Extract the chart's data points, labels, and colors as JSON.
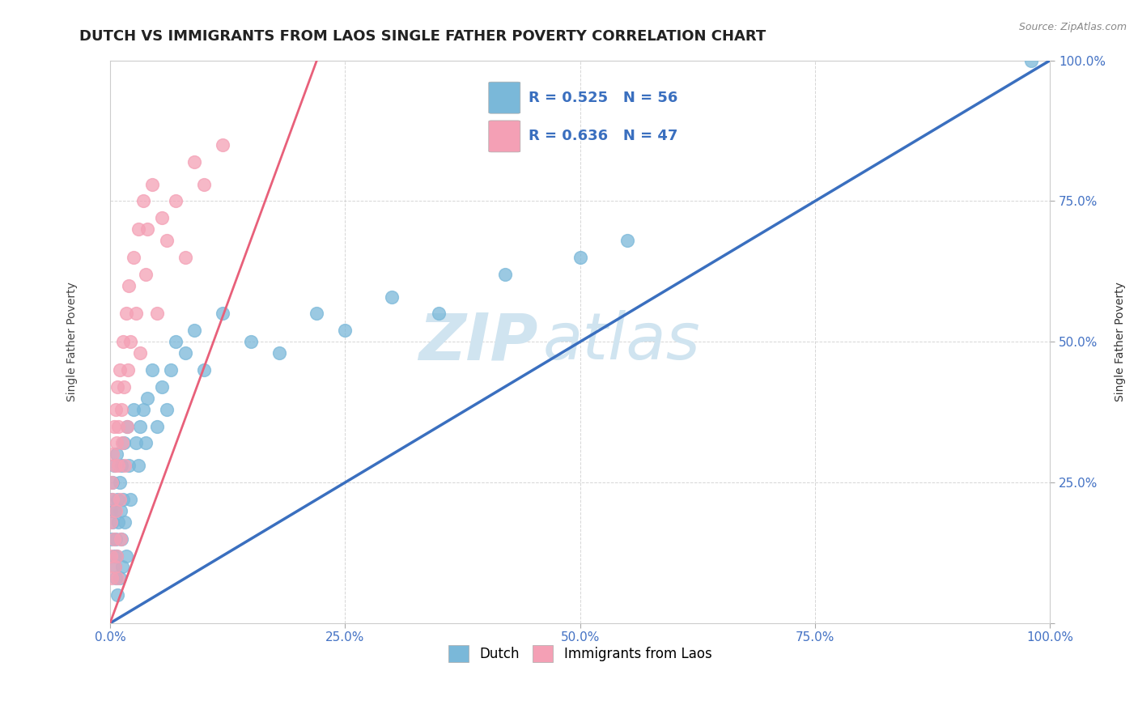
{
  "title": "DUTCH VS IMMIGRANTS FROM LAOS SINGLE FATHER POVERTY CORRELATION CHART",
  "source": "Source: ZipAtlas.com",
  "ylabel": "Single Father Poverty",
  "xlim": [
    0,
    1
  ],
  "ylim": [
    0,
    1
  ],
  "xticks": [
    0,
    0.25,
    0.5,
    0.75,
    1.0
  ],
  "yticks": [
    0.0,
    0.25,
    0.5,
    0.75,
    1.0
  ],
  "xticklabels": [
    "0.0%",
    "25.0%",
    "50.0%",
    "75.0%",
    "100.0%"
  ],
  "yticklabels": [
    "",
    "25.0%",
    "50.0%",
    "75.0%",
    "100.0%"
  ],
  "dutch_color": "#7ab8d9",
  "laos_color": "#f4a0b5",
  "dutch_line_color": "#3a6fbf",
  "laos_line_color": "#e8607a",
  "legend_R_dutch": "R = 0.525",
  "legend_N_dutch": "N = 56",
  "legend_R_laos": "R = 0.636",
  "legend_N_laos": "N = 47",
  "watermark_zip": "ZIP",
  "watermark_atlas": "atlas",
  "watermark_color": "#d0e4f0",
  "dutch_x": [
    0.001,
    0.002,
    0.002,
    0.003,
    0.003,
    0.004,
    0.004,
    0.005,
    0.005,
    0.006,
    0.006,
    0.007,
    0.007,
    0.008,
    0.008,
    0.009,
    0.01,
    0.01,
    0.011,
    0.012,
    0.012,
    0.013,
    0.014,
    0.015,
    0.016,
    0.017,
    0.018,
    0.02,
    0.022,
    0.025,
    0.028,
    0.03,
    0.032,
    0.035,
    0.038,
    0.04,
    0.045,
    0.05,
    0.055,
    0.06,
    0.065,
    0.07,
    0.08,
    0.09,
    0.1,
    0.12,
    0.15,
    0.18,
    0.22,
    0.25,
    0.3,
    0.35,
    0.42,
    0.5,
    0.55,
    0.98
  ],
  "dutch_y": [
    0.2,
    0.15,
    0.22,
    0.18,
    0.25,
    0.12,
    0.28,
    0.1,
    0.2,
    0.08,
    0.15,
    0.3,
    0.12,
    0.22,
    0.05,
    0.18,
    0.25,
    0.08,
    0.2,
    0.15,
    0.28,
    0.1,
    0.22,
    0.32,
    0.18,
    0.12,
    0.35,
    0.28,
    0.22,
    0.38,
    0.32,
    0.28,
    0.35,
    0.38,
    0.32,
    0.4,
    0.45,
    0.35,
    0.42,
    0.38,
    0.45,
    0.5,
    0.48,
    0.52,
    0.45,
    0.55,
    0.5,
    0.48,
    0.55,
    0.52,
    0.58,
    0.55,
    0.62,
    0.65,
    0.68,
    1.0
  ],
  "laos_x": [
    0.001,
    0.001,
    0.002,
    0.002,
    0.003,
    0.003,
    0.004,
    0.004,
    0.005,
    0.005,
    0.006,
    0.006,
    0.007,
    0.007,
    0.008,
    0.008,
    0.009,
    0.009,
    0.01,
    0.01,
    0.011,
    0.012,
    0.013,
    0.014,
    0.015,
    0.016,
    0.017,
    0.018,
    0.019,
    0.02,
    0.022,
    0.025,
    0.028,
    0.03,
    0.032,
    0.035,
    0.038,
    0.04,
    0.045,
    0.05,
    0.055,
    0.06,
    0.07,
    0.08,
    0.09,
    0.1,
    0.12
  ],
  "laos_y": [
    0.18,
    0.12,
    0.25,
    0.08,
    0.22,
    0.3,
    0.15,
    0.35,
    0.1,
    0.28,
    0.2,
    0.38,
    0.12,
    0.32,
    0.42,
    0.08,
    0.35,
    0.28,
    0.22,
    0.45,
    0.15,
    0.38,
    0.32,
    0.5,
    0.42,
    0.28,
    0.55,
    0.35,
    0.45,
    0.6,
    0.5,
    0.65,
    0.55,
    0.7,
    0.48,
    0.75,
    0.62,
    0.7,
    0.78,
    0.55,
    0.72,
    0.68,
    0.75,
    0.65,
    0.82,
    0.78,
    0.85
  ],
  "dutch_line_x": [
    0,
    1.0
  ],
  "dutch_line_y": [
    0.0,
    1.0
  ],
  "laos_line_x_start": 0.0,
  "laos_line_x_end": 0.22,
  "laos_line_y_start": 0.0,
  "laos_line_y_end": 1.0,
  "background_color": "#ffffff",
  "grid_color": "#cccccc",
  "title_fontsize": 13,
  "axis_label_fontsize": 10,
  "tick_fontsize": 11,
  "legend_fontsize": 13
}
